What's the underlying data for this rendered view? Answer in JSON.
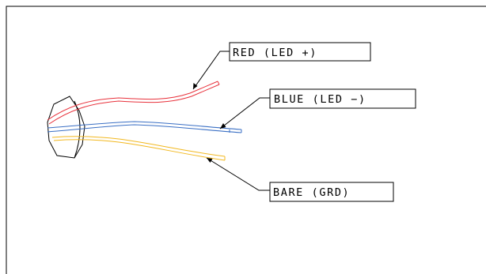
{
  "labels": {
    "red": "RED (LED +)",
    "blue": "BLUE (LED −)",
    "bare": "BARE (GRD)"
  },
  "colors": {
    "red_wire": "#e8323c",
    "blue_wire": "#3a6fc4",
    "bare_wire": "#f2b81f",
    "line": "#000000",
    "background": "#ffffff"
  }
}
